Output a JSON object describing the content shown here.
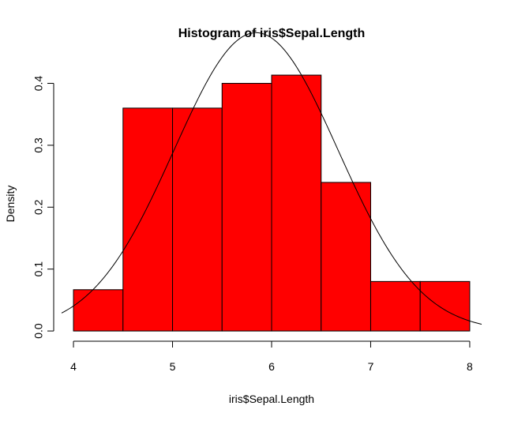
{
  "chart_data": {
    "type": "bar",
    "title": "Histogram of iris$Sepal.Length",
    "xlabel": "iris$Sepal.Length",
    "ylabel": "Density",
    "bins": [
      {
        "from": 4.0,
        "to": 4.5,
        "density": 0.0667
      },
      {
        "from": 4.5,
        "to": 5.0,
        "density": 0.36
      },
      {
        "from": 5.0,
        "to": 5.5,
        "density": 0.36
      },
      {
        "from": 5.5,
        "to": 6.0,
        "density": 0.4
      },
      {
        "from": 6.0,
        "to": 6.5,
        "density": 0.4133
      },
      {
        "from": 6.5,
        "to": 7.0,
        "density": 0.24
      },
      {
        "from": 7.0,
        "to": 7.5,
        "density": 0.08
      },
      {
        "from": 7.5,
        "to": 8.0,
        "density": 0.08
      }
    ],
    "bar_color": "#ff0000",
    "overlay_curve": {
      "type": "normal-density",
      "mean": 5.843,
      "sd": 0.828
    },
    "xlim": [
      3.88,
      8.12
    ],
    "ylim": [
      -0.0165,
      0.43
    ],
    "x_ticks": [
      "4",
      "5",
      "6",
      "7",
      "8"
    ],
    "y_ticks": [
      "0.0",
      "0.1",
      "0.2",
      "0.3",
      "0.4"
    ],
    "grid": false,
    "legend": "none"
  }
}
